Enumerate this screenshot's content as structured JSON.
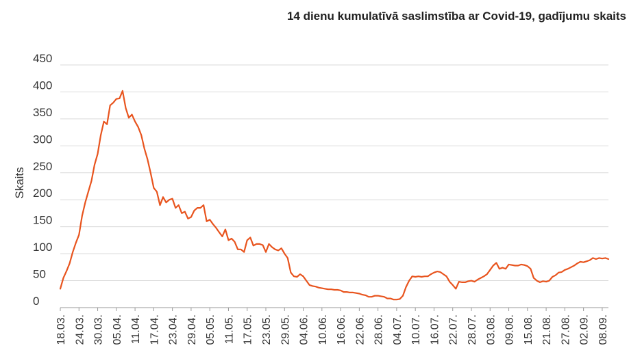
{
  "chart_data": {
    "type": "line",
    "title": "14 dienu kumulatīvā saslimstība ar Covid-19, gadījumu skaits",
    "xlabel": "",
    "ylabel": "Skaits",
    "ylim": [
      0,
      450
    ],
    "y_ticks": [
      0,
      50,
      100,
      150,
      200,
      250,
      300,
      350,
      400,
      450
    ],
    "x_tick_labels": [
      "18.03.",
      "24.03.",
      "30.03.",
      "05.04.",
      "11.04.",
      "17.04.",
      "23.04.",
      "29.04.",
      "05.05.",
      "11.05.",
      "17.05.",
      "23.05.",
      "29.05.",
      "04.06.",
      "10.06.",
      "16.06.",
      "22.06.",
      "28.06.",
      "04.07.",
      "10.07.",
      "16.07.",
      "22.07.",
      "28.07.",
      "03.08.",
      "09.08.",
      "15.08.",
      "21.08.",
      "27.08.",
      "02.09.",
      "08.09."
    ],
    "grid": true,
    "series": [
      {
        "color": "#e8541e",
        "x": [
          0,
          1,
          2,
          3,
          4,
          5,
          6,
          7,
          8,
          9,
          10,
          11,
          12,
          13,
          14,
          15,
          16,
          17,
          18,
          19,
          20,
          21,
          22,
          23,
          24,
          25,
          26,
          27,
          28,
          29,
          30,
          31,
          32,
          33,
          34,
          35,
          36,
          37,
          38,
          39,
          40,
          41,
          42,
          43,
          44,
          45,
          46,
          47,
          48,
          49,
          50,
          51,
          52,
          53,
          54,
          55,
          56,
          57,
          58,
          59,
          60,
          61,
          62,
          63,
          64,
          65,
          66,
          67,
          68,
          69,
          70,
          71,
          72,
          73,
          74,
          75,
          76,
          77,
          78,
          79,
          80,
          81,
          82,
          83,
          84,
          85,
          86,
          87,
          88,
          89,
          90,
          91,
          92,
          93,
          94,
          95,
          96,
          97,
          98,
          99,
          100,
          101,
          102,
          103,
          104,
          105,
          106,
          107,
          108,
          109,
          110,
          111,
          112,
          113,
          114,
          115,
          116,
          117,
          118,
          119,
          120,
          121,
          122,
          123,
          124,
          125,
          126,
          127,
          128,
          129,
          130,
          131,
          132,
          133,
          134,
          135,
          136,
          137,
          138,
          139,
          140,
          141,
          142,
          143,
          144,
          145,
          146,
          147,
          148,
          149,
          150,
          151,
          152,
          153,
          154,
          155,
          156,
          157,
          158,
          159,
          160,
          161,
          162,
          163,
          164,
          165,
          166,
          167,
          168,
          169,
          170,
          171,
          172,
          173,
          174,
          175,
          176
        ],
        "y": [
          35,
          55,
          68,
          82,
          103,
          120,
          135,
          170,
          195,
          215,
          235,
          265,
          285,
          320,
          345,
          340,
          375,
          380,
          387,
          388,
          402,
          370,
          352,
          358,
          345,
          335,
          320,
          295,
          275,
          250,
          222,
          215,
          190,
          205,
          195,
          200,
          202,
          185,
          190,
          175,
          178,
          165,
          168,
          180,
          185,
          185,
          190,
          160,
          163,
          155,
          148,
          140,
          132,
          145,
          125,
          128,
          122,
          108,
          108,
          103,
          125,
          130,
          115,
          118,
          118,
          116,
          103,
          118,
          112,
          108,
          106,
          110,
          100,
          92,
          65,
          58,
          57,
          62,
          58,
          50,
          42,
          40,
          39,
          37,
          36,
          35,
          34,
          34,
          33,
          33,
          32,
          29,
          29,
          28,
          28,
          27,
          26,
          24,
          23,
          20,
          20,
          22,
          22,
          21,
          20,
          17,
          17,
          15,
          15,
          16,
          22,
          38,
          50,
          58,
          57,
          58,
          57,
          58,
          58,
          62,
          65,
          67,
          66,
          62,
          58,
          48,
          42,
          35,
          48,
          47,
          47,
          49,
          50,
          48,
          52,
          55,
          58,
          62,
          70,
          78,
          83,
          72,
          74,
          72,
          80,
          79,
          78,
          78,
          80,
          79,
          77,
          72,
          55,
          50,
          47,
          49,
          48,
          50,
          57,
          60,
          65,
          66,
          70,
          72,
          75,
          78,
          82,
          85,
          84,
          86,
          88,
          92,
          90,
          92,
          91,
          92,
          90
        ]
      }
    ]
  }
}
